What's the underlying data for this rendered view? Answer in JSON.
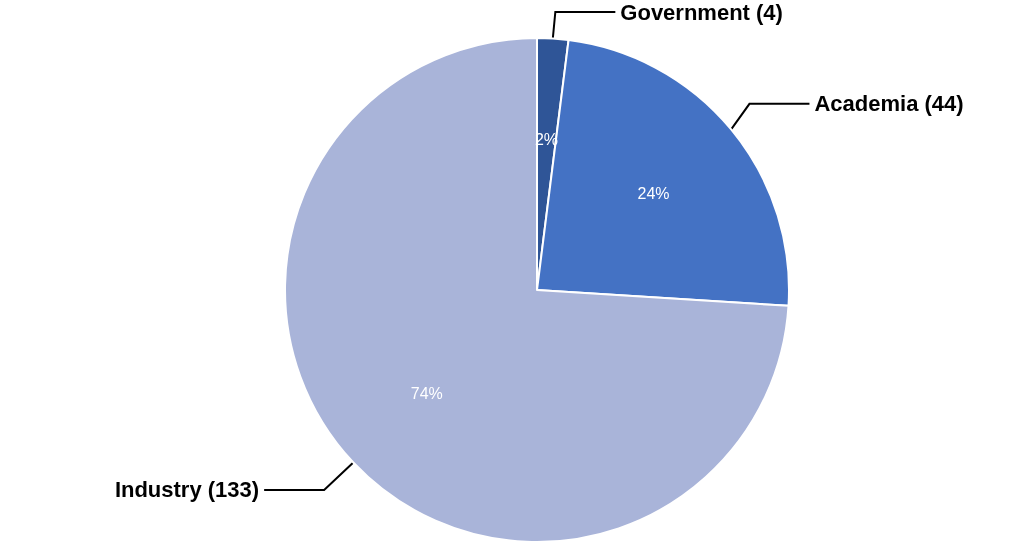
{
  "chart_data": {
    "type": "pie",
    "categories": [
      "Government (4)",
      "Academia (44)",
      "Industry (133)"
    ],
    "values": [
      2,
      24,
      74
    ],
    "value_labels": [
      "2%",
      "24%",
      "74%"
    ],
    "colors": [
      "#2f5597",
      "#4472c4",
      "#a9b4d9"
    ],
    "legend": false
  }
}
